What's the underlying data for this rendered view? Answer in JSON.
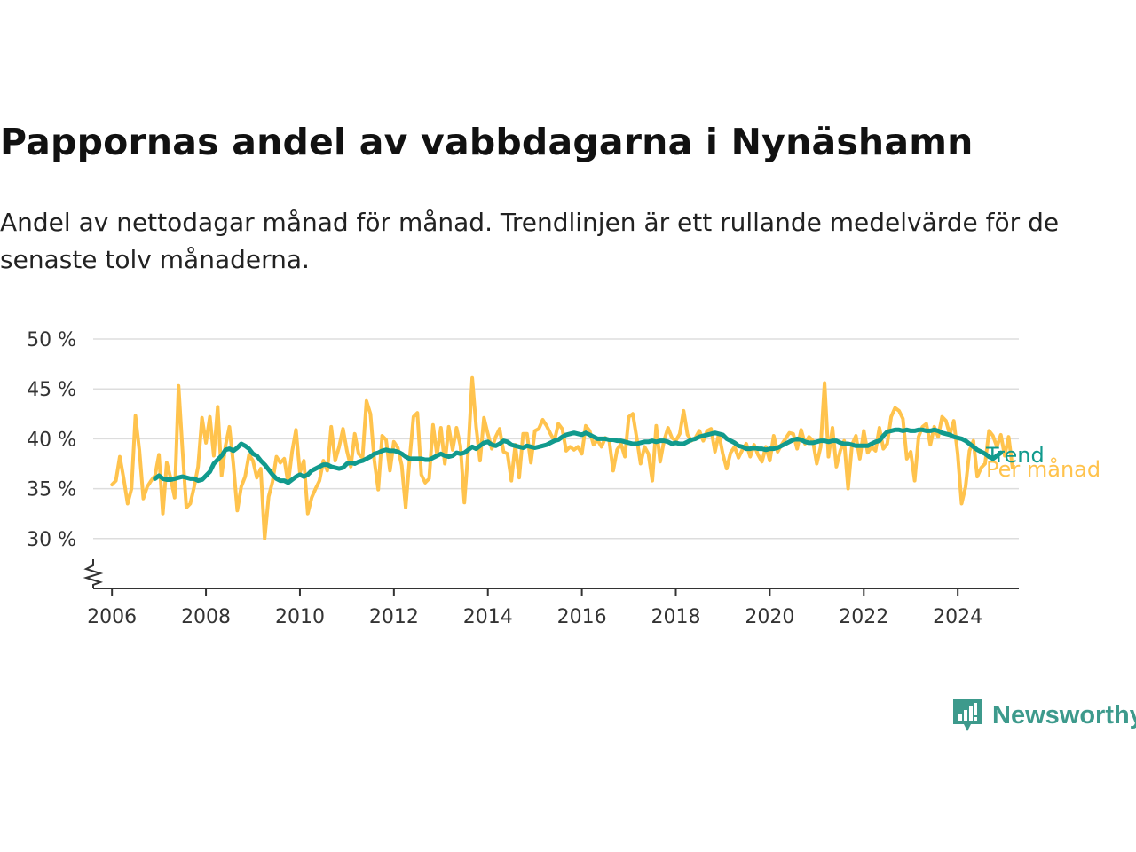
{
  "title": "Pappornas andel av vabbdagarna i Nynäshamn",
  "subtitle": "Andel av nettodagar månad för månad. Trendlinjen är ett rullande medelvärde för de senaste tolv månaderna.",
  "brand": {
    "name": "Newsworthy",
    "icon": "newsworthy-logo-icon"
  },
  "colors": {
    "monthly": "#ffc34d",
    "trend": "#119a8d",
    "grid": "#dddddd",
    "axis": "#333333"
  },
  "chart_data": {
    "type": "line",
    "ylim": [
      25,
      50
    ],
    "yticks": [
      30,
      35,
      40,
      45,
      50
    ],
    "ytick_labels": [
      "30 %",
      "35 %",
      "40 %",
      "45 %",
      "50 %"
    ],
    "xlim": [
      2005.6,
      2025.3
    ],
    "xticks": [
      2006,
      2008,
      2010,
      2012,
      2014,
      2016,
      2018,
      2020,
      2022,
      2024
    ],
    "xtick_labels": [
      "2006",
      "2008",
      "2010",
      "2012",
      "2014",
      "2016",
      "2018",
      "2020",
      "2022",
      "2024"
    ],
    "grid": true,
    "axis_break": true,
    "series": [
      {
        "name": "Per månad",
        "color": "#ffc34d",
        "x_start": 2006.0,
        "step": 0.08333,
        "values": [
          35.4,
          35.8,
          38.2,
          36.0,
          33.5,
          35.0,
          42.3,
          38.8,
          34.0,
          35.2,
          35.8,
          36.3,
          38.4,
          32.5,
          37.6,
          36.0,
          34.1,
          45.3,
          38.9,
          33.1,
          33.5,
          35.2,
          37.2,
          42.1,
          39.6,
          42.2,
          38.3,
          43.2,
          36.3,
          39.3,
          41.2,
          37.5,
          32.8,
          35.2,
          36.2,
          38.4,
          37.8,
          36.1,
          37.0,
          30.0,
          34.2,
          35.7,
          38.2,
          37.6,
          38.0,
          35.5,
          38.7,
          40.9,
          36.6,
          37.8,
          32.5,
          34.1,
          35.0,
          35.8,
          37.8,
          36.8,
          41.2,
          37.8,
          39.2,
          41.0,
          38.8,
          37.2,
          40.5,
          38.5,
          38.1,
          43.8,
          42.5,
          37.8,
          34.9,
          40.3,
          39.9,
          36.8,
          39.7,
          39.1,
          37.3,
          33.1,
          37.9,
          42.2,
          42.6,
          36.4,
          35.6,
          36.0,
          41.4,
          38.4,
          41.1,
          37.5,
          41.2,
          38.9,
          41.1,
          39.3,
          33.6,
          39.0,
          46.1,
          41.2,
          37.8,
          42.1,
          40.5,
          39.0,
          40.2,
          41.0,
          38.7,
          38.5,
          35.8,
          39.4,
          36.1,
          40.5,
          40.5,
          37.6,
          40.8,
          41.0,
          41.9,
          41.3,
          40.5,
          39.8,
          41.5,
          41.0,
          38.8,
          39.2,
          38.9,
          39.2,
          38.5,
          41.3,
          40.8,
          39.4,
          39.9,
          39.2,
          40.1,
          39.8,
          36.8,
          38.9,
          39.5,
          38.2,
          42.2,
          42.5,
          40.1,
          37.5,
          39.2,
          38.5,
          35.8,
          41.3,
          37.7,
          39.8,
          41.1,
          40.1,
          39.8,
          40.5,
          42.8,
          40.4,
          39.8,
          40.1,
          40.8,
          39.8,
          40.8,
          41.0,
          38.7,
          40.5,
          38.5,
          37.0,
          38.6,
          39.2,
          38.1,
          38.9,
          39.5,
          38.2,
          39.4,
          38.4,
          37.7,
          39.2,
          37.8,
          40.3,
          38.7,
          39.4,
          40.0,
          40.6,
          40.5,
          39.0,
          40.9,
          39.5,
          40.2,
          39.8,
          37.5,
          39.2,
          45.6,
          38.2,
          41.1,
          37.2,
          38.8,
          39.8,
          35.0,
          39.4,
          40.3,
          38.0,
          40.8,
          38.6,
          39.2,
          38.8,
          41.1,
          39.0,
          39.5,
          42.2,
          43.1,
          42.8,
          42.0,
          38.0,
          38.7,
          35.8,
          40.2,
          41.2,
          41.5,
          39.4,
          41.2,
          40.2,
          42.2,
          41.8,
          40.4,
          41.8,
          38.5,
          33.5,
          35.2,
          38.8,
          39.8,
          36.2,
          37.1,
          37.5,
          40.8,
          40.3,
          39.2,
          40.4,
          38.3,
          40.2,
          37.1
        ]
      },
      {
        "name": "Trend",
        "color": "#119a8d",
        "x_start": 2006.917,
        "step": 0.08333,
        "values": [
          36.0,
          36.3,
          36.0,
          35.9,
          35.9,
          36.0,
          36.1,
          36.2,
          36.1,
          36.0,
          36.0,
          35.8,
          35.9,
          36.3,
          36.7,
          37.5,
          37.9,
          38.3,
          38.9,
          39.0,
          38.8,
          39.1,
          39.5,
          39.3,
          39.0,
          38.5,
          38.3,
          37.8,
          37.4,
          36.9,
          36.4,
          36.0,
          35.8,
          35.8,
          35.6,
          35.9,
          36.2,
          36.4,
          36.2,
          36.4,
          36.8,
          37.0,
          37.2,
          37.4,
          37.4,
          37.2,
          37.1,
          37.0,
          37.1,
          37.5,
          37.6,
          37.5,
          37.7,
          37.8,
          38.0,
          38.2,
          38.5,
          38.6,
          38.8,
          38.9,
          38.8,
          38.8,
          38.7,
          38.5,
          38.2,
          38.0,
          38.0,
          38.0,
          38.0,
          37.9,
          37.9,
          38.1,
          38.3,
          38.5,
          38.3,
          38.2,
          38.3,
          38.6,
          38.5,
          38.6,
          38.9,
          39.2,
          39.0,
          39.3,
          39.6,
          39.7,
          39.4,
          39.3,
          39.5,
          39.8,
          39.7,
          39.4,
          39.3,
          39.2,
          39.1,
          39.3,
          39.2,
          39.1,
          39.2,
          39.3,
          39.4,
          39.6,
          39.8,
          39.9,
          40.2,
          40.4,
          40.5,
          40.6,
          40.5,
          40.4,
          40.6,
          40.4,
          40.2,
          40.0,
          40.0,
          40.0,
          39.9,
          39.9,
          39.8,
          39.8,
          39.7,
          39.6,
          39.5,
          39.5,
          39.6,
          39.7,
          39.7,
          39.8,
          39.7,
          39.8,
          39.8,
          39.7,
          39.5,
          39.6,
          39.5,
          39.5,
          39.7,
          39.9,
          40.0,
          40.2,
          40.3,
          40.4,
          40.5,
          40.6,
          40.5,
          40.4,
          40.0,
          39.8,
          39.6,
          39.3,
          39.2,
          39.0,
          39.0,
          39.1,
          39.0,
          39.0,
          38.9,
          39.0,
          39.0,
          39.1,
          39.3,
          39.5,
          39.7,
          39.9,
          40.0,
          39.9,
          39.7,
          39.6,
          39.6,
          39.7,
          39.8,
          39.8,
          39.7,
          39.8,
          39.8,
          39.6,
          39.5,
          39.5,
          39.4,
          39.3,
          39.3,
          39.3,
          39.3,
          39.5,
          39.7,
          39.8,
          40.3,
          40.7,
          40.8,
          40.9,
          40.9,
          40.8,
          40.9,
          40.8,
          40.8,
          40.9,
          40.9,
          40.8,
          40.8,
          40.9,
          40.8,
          40.6,
          40.5,
          40.4,
          40.2,
          40.1,
          40.0,
          39.8,
          39.5,
          39.2,
          38.9,
          38.7,
          38.5,
          38.2,
          38.0,
          38.3,
          38.6
        ]
      }
    ]
  }
}
